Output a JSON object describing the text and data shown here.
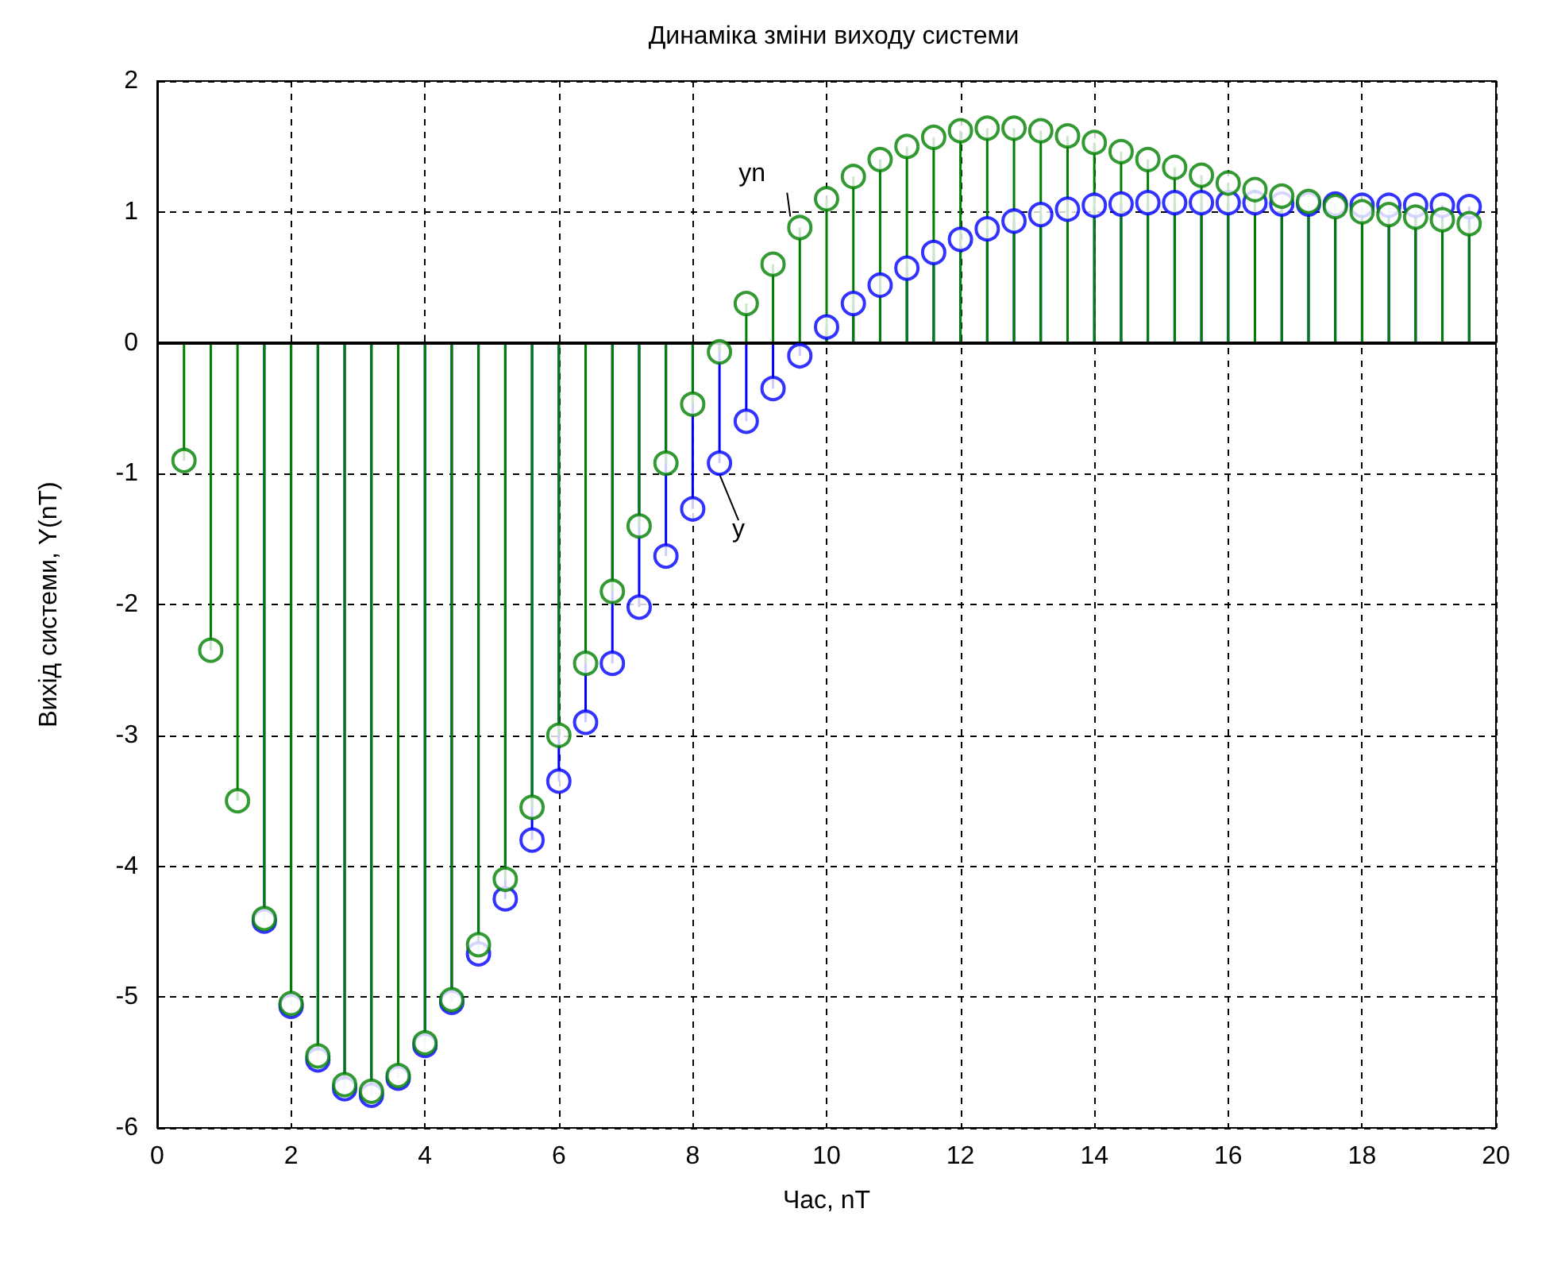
{
  "chart_data": {
    "type": "lollipop",
    "title": "Динаміка зміни виходу системи",
    "xlabel": "Час, nT",
    "ylabel": "Вихід системи, Y(nT)",
    "x": [
      0.4,
      0.8,
      1.2,
      1.6,
      2.0,
      2.4,
      2.8,
      3.2,
      3.6,
      4.0,
      4.4,
      4.8,
      5.2,
      5.6,
      6.0,
      6.4,
      6.8,
      7.2,
      7.6,
      8.0,
      8.4,
      8.8,
      9.2,
      9.6,
      10.0,
      10.4,
      10.8,
      11.2,
      11.6,
      12.0,
      12.4,
      12.8,
      13.2,
      13.6,
      14.0,
      14.4,
      14.8,
      15.2,
      15.6,
      16.0,
      16.4,
      16.8,
      17.2,
      17.6,
      18.0,
      18.4,
      18.8,
      19.2,
      19.6
    ],
    "series": [
      {
        "color": "#0000ff",
        "values": [
          null,
          null,
          null,
          -4.42,
          -5.07,
          -5.48,
          -5.7,
          -5.75,
          -5.62,
          -5.37,
          -5.04,
          -4.67,
          -4.25,
          -3.8,
          -3.35,
          -2.9,
          -2.45,
          -2.02,
          -1.63,
          -1.27,
          -0.92,
          -0.6,
          -0.35,
          -0.1,
          0.12,
          0.3,
          0.44,
          0.57,
          0.69,
          0.79,
          0.87,
          0.93,
          0.98,
          1.02,
          1.05,
          1.06,
          1.07,
          1.07,
          1.07,
          1.07,
          1.07,
          1.06,
          1.06,
          1.06,
          1.05,
          1.05,
          1.05,
          1.05,
          1.04
        ]
      },
      {
        "color": "#008000",
        "values": [
          -0.9,
          -2.35,
          -3.5,
          -4.4,
          -5.05,
          -5.45,
          -5.67,
          -5.72,
          -5.6,
          -5.35,
          -5.02,
          -4.6,
          -4.1,
          -3.55,
          -3.0,
          -2.45,
          -1.9,
          -1.4,
          -0.92,
          -0.47,
          -0.07,
          0.3,
          0.6,
          0.88,
          1.1,
          1.27,
          1.4,
          1.5,
          1.57,
          1.62,
          1.64,
          1.64,
          1.62,
          1.58,
          1.53,
          1.46,
          1.4,
          1.34,
          1.28,
          1.22,
          1.17,
          1.12,
          1.08,
          1.04,
          1.0,
          0.98,
          0.96,
          0.94,
          0.91
        ]
      }
    ],
    "annotations": [
      {
        "text": "yn",
        "x": 9.6,
        "y": 0.88
      },
      {
        "text": "y",
        "x": 8.4,
        "y": -0.92
      }
    ],
    "ref_lines": [
      {
        "axis": "y",
        "value": 0,
        "color": "#000000"
      }
    ],
    "xlim": [
      0,
      20
    ],
    "xticks": [
      0,
      2,
      4,
      6,
      8,
      10,
      12,
      14,
      16,
      18,
      20
    ],
    "ylim": [
      -6,
      2
    ],
    "yticks": [
      -6,
      -5,
      -4,
      -3,
      -2,
      -1,
      0,
      1,
      2
    ],
    "grid": true,
    "marker": "circle"
  }
}
